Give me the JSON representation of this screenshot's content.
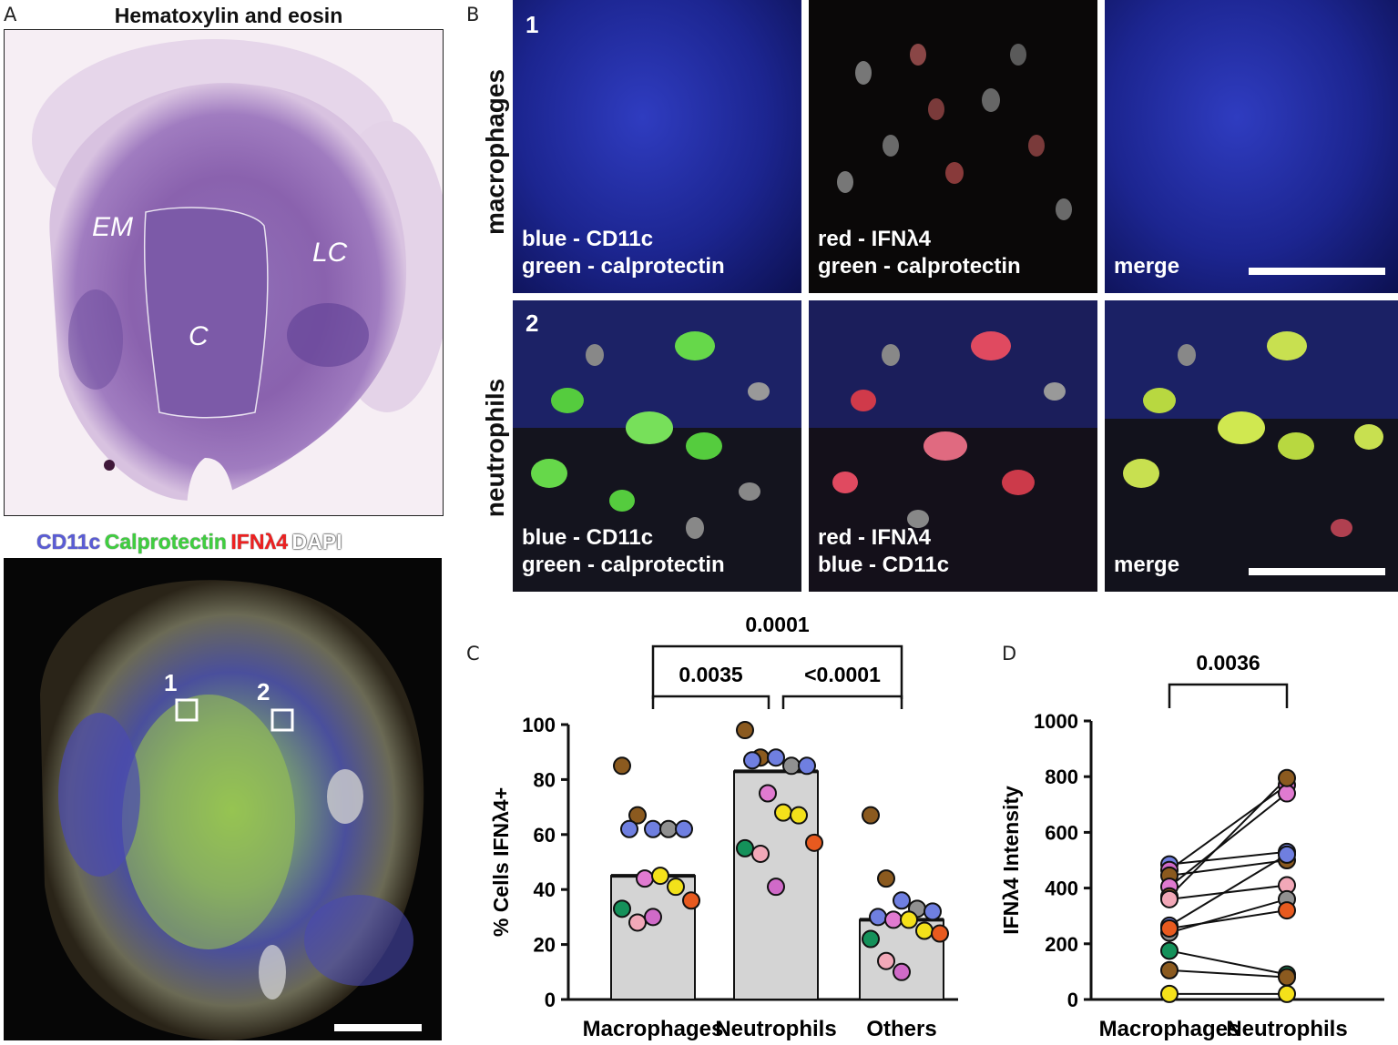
{
  "panels": {
    "A": {
      "letter": "A",
      "title": "Hematoxylin and eosin",
      "regions": [
        "EM",
        "LC",
        "C"
      ],
      "fluor_legend": [
        {
          "text": "CD11c",
          "color": "#5a5cd6"
        },
        {
          "text": "Calprotectin",
          "color": "#3fcf3f"
        },
        {
          "text": "IFNλ4",
          "color": "#ee2020"
        },
        {
          "text": "DAPI",
          "color": "#ffffff"
        }
      ],
      "box_labels": [
        "1",
        "2"
      ]
    },
    "B": {
      "letter": "B",
      "row_labels": [
        "macrophages",
        "neutrophils"
      ],
      "row_numbers": [
        "1",
        "2"
      ],
      "tiles": [
        [
          "blue - CD11c",
          "green - calprotectin"
        ],
        [
          "red - IFNλ4",
          "green - calprotectin"
        ],
        [
          "merge"
        ],
        [
          "blue - CD11c",
          "green - calprotectin"
        ],
        [
          "red - IFNλ4",
          "blue - CD11c"
        ],
        [
          "merge"
        ]
      ]
    },
    "C": {
      "letter": "C"
    },
    "D": {
      "letter": "D"
    }
  },
  "chart_data": [
    {
      "type": "bar",
      "panel": "C",
      "categories": [
        "Macrophages",
        "Neutrophils",
        "Others"
      ],
      "values": [
        45,
        83,
        29
      ],
      "ylabel": "% Cells IFNλ4+",
      "xlabel": "",
      "ylim": [
        0,
        100
      ],
      "yticks": [
        0,
        20,
        40,
        60,
        80,
        100
      ],
      "bar_color": "#d4d4d4",
      "points": [
        [
          85,
          67,
          62,
          62,
          62,
          62,
          44,
          45,
          41,
          36,
          33,
          28,
          30
        ],
        [
          98,
          88,
          88,
          85,
          85,
          87,
          75,
          68,
          67,
          57,
          55,
          53,
          41
        ],
        [
          67,
          44,
          36,
          33,
          32,
          30,
          29,
          29,
          25,
          24,
          22,
          14,
          10
        ]
      ],
      "point_colors": [
        "#8b5a1f",
        "#8b5a1f",
        "#6f7fe0",
        "#909090",
        "#6f7fe0",
        "#6f7fe0",
        "#e07ad0",
        "#f5e11a",
        "#f2e11a",
        "#e85a1f",
        "#14915a",
        "#f2a8b8",
        "#d06ac8"
      ],
      "comparisons": [
        {
          "pair": [
            "Macrophages",
            "Others"
          ],
          "p": "0.0001"
        },
        {
          "pair": [
            "Macrophages",
            "Neutrophils"
          ],
          "p": "0.0035"
        },
        {
          "pair": [
            "Neutrophils",
            "Others"
          ],
          "p": "<0.0001"
        }
      ]
    },
    {
      "type": "line",
      "panel": "D",
      "categories": [
        "Macrophages",
        "Neutrophils"
      ],
      "ylabel": "IFNλ4 Intensity",
      "xlabel": "",
      "ylim": [
        0,
        1000
      ],
      "yticks": [
        0,
        200,
        400,
        600,
        800,
        1000
      ],
      "pairs": [
        [
          485,
          530
        ],
        [
          465,
          770
        ],
        [
          445,
          500
        ],
        [
          405,
          740
        ],
        [
          370,
          795
        ],
        [
          360,
          410
        ],
        [
          265,
          520
        ],
        [
          240,
          360
        ],
        [
          255,
          320
        ],
        [
          175,
          90
        ],
        [
          105,
          80
        ],
        [
          20,
          20
        ]
      ],
      "pair_colors": [
        "#6f7fe0",
        "#d06ac8",
        "#8b5a1f",
        "#e07ad0",
        "#8b5a1f",
        "#f2a8b8",
        "#6f7fe0",
        "#909090",
        "#e85a1f",
        "#14915a",
        "#8b5a1f",
        "#f5e11a"
      ],
      "comparisons": [
        {
          "pair": [
            "Macrophages",
            "Neutrophils"
          ],
          "p": "0.0036"
        }
      ]
    }
  ]
}
